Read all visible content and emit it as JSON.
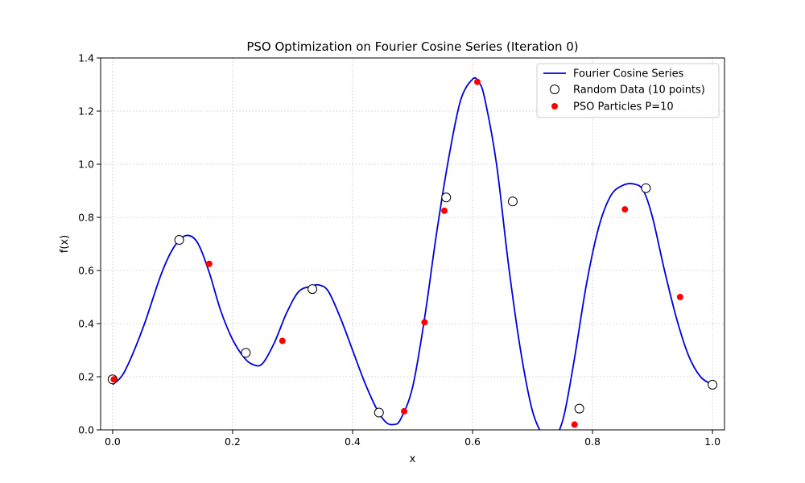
{
  "chart_data": {
    "type": "line",
    "title": "PSO Optimization on Fourier Cosine Series (Iteration 0)",
    "xlabel": "x",
    "ylabel": "f(x)",
    "xlim": [
      -0.02,
      1.02
    ],
    "ylim": [
      0,
      1.4
    ],
    "xticks": [
      0.0,
      0.2,
      0.4,
      0.6,
      0.8,
      1.0
    ],
    "xtick_labels": [
      "0.0",
      "0.2",
      "0.4",
      "0.6",
      "0.8",
      "1.0"
    ],
    "yticks": [
      0.0,
      0.2,
      0.4,
      0.6,
      0.8,
      1.0,
      1.2,
      1.4
    ],
    "ytick_labels": [
      "0.0",
      "0.2",
      "0.4",
      "0.6",
      "0.8",
      "1.0",
      "1.2",
      "1.4"
    ],
    "grid": true,
    "legend_position": "top-right",
    "series": [
      {
        "name": "Fourier Cosine Series",
        "kind": "line",
        "color": "#0000dd",
        "x": [
          0.0,
          0.02,
          0.05,
          0.08,
          0.1,
          0.12,
          0.14,
          0.16,
          0.18,
          0.2,
          0.22,
          0.235,
          0.25,
          0.27,
          0.29,
          0.31,
          0.33,
          0.345,
          0.36,
          0.38,
          0.4,
          0.42,
          0.44,
          0.455,
          0.468,
          0.48,
          0.5,
          0.52,
          0.54,
          0.56,
          0.58,
          0.6,
          0.61,
          0.62,
          0.64,
          0.66,
          0.68,
          0.7,
          0.72,
          0.735,
          0.745,
          0.755,
          0.77,
          0.79,
          0.81,
          0.83,
          0.85,
          0.87,
          0.885,
          0.9,
          0.92,
          0.94,
          0.96,
          0.98,
          1.0
        ],
        "y": [
          0.17,
          0.22,
          0.38,
          0.58,
          0.68,
          0.73,
          0.71,
          0.6,
          0.45,
          0.34,
          0.27,
          0.245,
          0.25,
          0.33,
          0.44,
          0.52,
          0.54,
          0.545,
          0.52,
          0.42,
          0.3,
          0.18,
          0.08,
          0.03,
          0.02,
          0.04,
          0.16,
          0.42,
          0.74,
          1.02,
          1.24,
          1.32,
          1.31,
          1.25,
          1.0,
          0.62,
          0.3,
          0.07,
          -0.03,
          -0.04,
          0.0,
          0.08,
          0.27,
          0.55,
          0.76,
          0.88,
          0.92,
          0.925,
          0.9,
          0.8,
          0.6,
          0.42,
          0.28,
          0.2,
          0.17
        ]
      },
      {
        "name": "Random Data (10 points)",
        "kind": "scatter",
        "marker": "open-circle",
        "x": [
          0.0,
          0.111,
          0.222,
          0.333,
          0.444,
          0.556,
          0.667,
          0.778,
          0.889,
          1.0
        ],
        "y": [
          0.19,
          0.715,
          0.29,
          0.53,
          0.065,
          0.875,
          0.86,
          0.08,
          0.91,
          0.17
        ]
      },
      {
        "name": "PSO Particles P=10",
        "kind": "scatter",
        "marker": "filled-dot",
        "color": "#ff0000",
        "x": [
          0.002,
          0.161,
          0.283,
          0.486,
          0.52,
          0.553,
          0.608,
          0.77,
          0.854,
          0.946
        ],
        "y": [
          0.19,
          0.625,
          0.335,
          0.07,
          0.405,
          0.825,
          1.31,
          0.02,
          0.83,
          0.5
        ]
      }
    ]
  }
}
